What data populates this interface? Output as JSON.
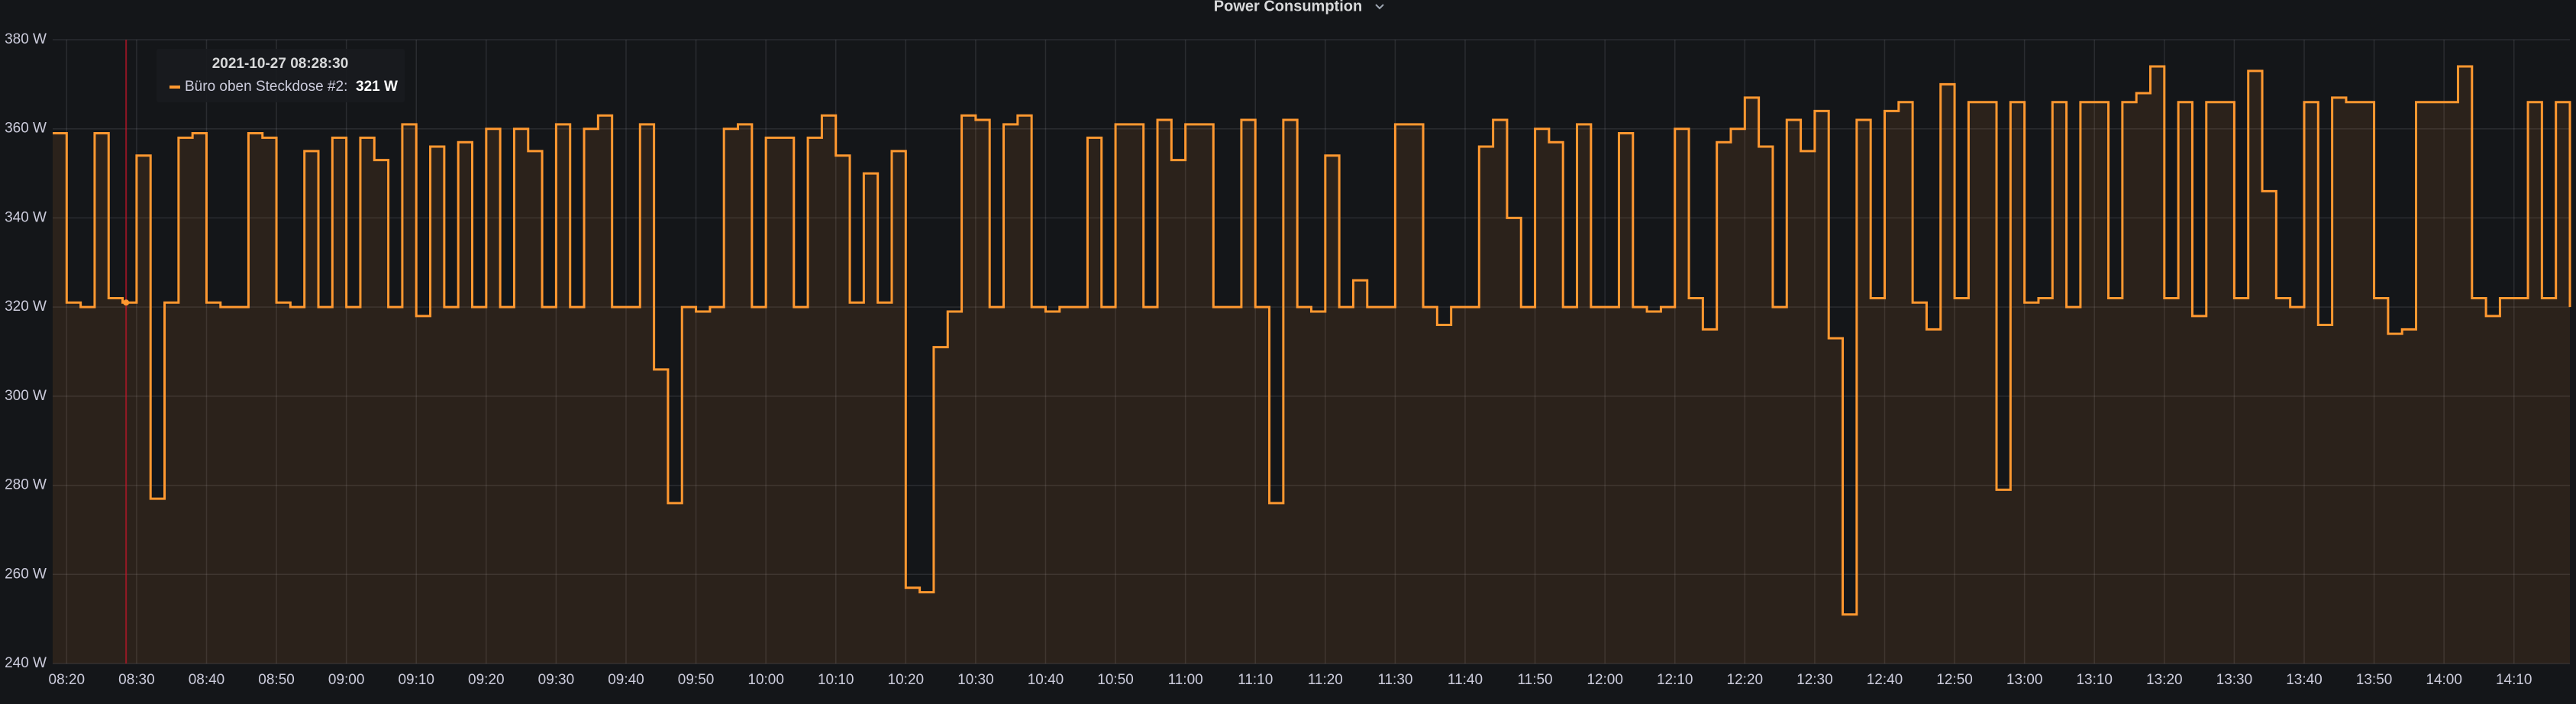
{
  "chart_data": {
    "type": "line",
    "title": "Power Consumption",
    "step": true,
    "grid": true,
    "xlim": [
      "08:18",
      "14:18"
    ],
    "xticks": [
      "08:20",
      "08:30",
      "08:40",
      "08:50",
      "09:00",
      "09:10",
      "09:20",
      "09:30",
      "09:40",
      "09:50",
      "10:00",
      "10:10",
      "10:20",
      "10:30",
      "10:40",
      "10:50",
      "11:00",
      "11:10",
      "11:20",
      "11:30",
      "11:40",
      "11:50",
      "12:00",
      "12:10",
      "12:20",
      "12:30",
      "12:40",
      "12:50",
      "13:00",
      "13:10",
      "13:20",
      "13:30",
      "13:40",
      "13:50",
      "14:00",
      "14:10"
    ],
    "ylim": [
      240,
      380
    ],
    "yticks": [
      {
        "value": 240,
        "label": "240 W"
      },
      {
        "value": 260,
        "label": "260 W"
      },
      {
        "value": 280,
        "label": "280 W"
      },
      {
        "value": 300,
        "label": "300 W"
      },
      {
        "value": 320,
        "label": "320 W"
      },
      {
        "value": 340,
        "label": "340 W"
      },
      {
        "value": 360,
        "label": "360 W"
      },
      {
        "value": 380,
        "label": "380 W"
      }
    ],
    "x": [
      "08:18",
      "08:20",
      "08:22",
      "08:24",
      "08:26",
      "08:28",
      "08:30",
      "08:32",
      "08:34",
      "08:36",
      "08:38",
      "08:40",
      "08:42",
      "08:44",
      "08:46",
      "08:48",
      "08:50",
      "08:52",
      "08:54",
      "08:56",
      "08:58",
      "09:00",
      "09:02",
      "09:04",
      "09:06",
      "09:08",
      "09:10",
      "09:12",
      "09:14",
      "09:16",
      "09:18",
      "09:20",
      "09:22",
      "09:24",
      "09:26",
      "09:28",
      "09:30",
      "09:32",
      "09:34",
      "09:36",
      "09:38",
      "09:40",
      "09:42",
      "09:44",
      "09:46",
      "09:48",
      "09:50",
      "09:52",
      "09:54",
      "09:56",
      "09:58",
      "10:00",
      "10:02",
      "10:04",
      "10:06",
      "10:08",
      "10:10",
      "10:12",
      "10:14",
      "10:16",
      "10:18",
      "10:20",
      "10:22",
      "10:24",
      "10:26",
      "10:28",
      "10:30",
      "10:32",
      "10:34",
      "10:36",
      "10:38",
      "10:40",
      "10:42",
      "10:44",
      "10:46",
      "10:48",
      "10:50",
      "10:52",
      "10:54",
      "10:56",
      "10:58",
      "11:00",
      "11:02",
      "11:04",
      "11:06",
      "11:08",
      "11:10",
      "11:12",
      "11:14",
      "11:16",
      "11:18",
      "11:20",
      "11:22",
      "11:24",
      "11:26",
      "11:28",
      "11:30",
      "11:32",
      "11:34",
      "11:36",
      "11:38",
      "11:40",
      "11:42",
      "11:44",
      "11:46",
      "11:48",
      "11:50",
      "11:52",
      "11:54",
      "11:56",
      "11:58",
      "12:00",
      "12:02",
      "12:04",
      "12:06",
      "12:08",
      "12:10",
      "12:12",
      "12:14",
      "12:16",
      "12:18",
      "12:20",
      "12:22",
      "12:24",
      "12:26",
      "12:28",
      "12:30",
      "12:32",
      "12:34",
      "12:36",
      "12:38",
      "12:40",
      "12:42",
      "12:44",
      "12:46",
      "12:48",
      "12:50",
      "12:52",
      "12:54",
      "12:56",
      "12:58",
      "13:00",
      "13:02",
      "13:04",
      "13:06",
      "13:08",
      "13:10",
      "13:12",
      "13:14",
      "13:16",
      "13:18",
      "13:20",
      "13:22",
      "13:24",
      "13:26",
      "13:28",
      "13:30",
      "13:32",
      "13:34",
      "13:36",
      "13:38",
      "13:40",
      "13:42",
      "13:44",
      "13:46",
      "13:48",
      "13:50",
      "13:52",
      "13:54",
      "13:56",
      "13:58",
      "14:00",
      "14:02",
      "14:04",
      "14:06",
      "14:08",
      "14:10",
      "14:12",
      "14:14",
      "14:16",
      "14:18"
    ],
    "series": [
      {
        "color": "#ff9830",
        "values": [
          359,
          321,
          320,
          359,
          322,
          321,
          354,
          277,
          321,
          358,
          359,
          321,
          320,
          320,
          359,
          358,
          321,
          320,
          355,
          320,
          358,
          320,
          358,
          353,
          320,
          361,
          318,
          356,
          320,
          357,
          320,
          360,
          320,
          360,
          355,
          320,
          361,
          320,
          360,
          363,
          320,
          320,
          361,
          306,
          276,
          320,
          319,
          320,
          360,
          361,
          320,
          358,
          358,
          320,
          358,
          363,
          354,
          321,
          350,
          321,
          355,
          257,
          256,
          311,
          319,
          363,
          362,
          320,
          361,
          363,
          320,
          319,
          320,
          320,
          358,
          320,
          361,
          361,
          320,
          362,
          353,
          361,
          361,
          320,
          320,
          362,
          320,
          276,
          362,
          320,
          319,
          354,
          320,
          326,
          320,
          320,
          361,
          361,
          320,
          316,
          320,
          320,
          356,
          362,
          340,
          320,
          360,
          357,
          320,
          361,
          320,
          320,
          359,
          320,
          319,
          320,
          360,
          322,
          315,
          357,
          360,
          367,
          356,
          320,
          362,
          355,
          364,
          313,
          251,
          362,
          322,
          364,
          366,
          321,
          315,
          370,
          322,
          366,
          366,
          279,
          366,
          321,
          322,
          366,
          320,
          366,
          366,
          322,
          366,
          368,
          374,
          322,
          366,
          318,
          366,
          366,
          322,
          373,
          346,
          322,
          320,
          366,
          316,
          367,
          366,
          366,
          322,
          314,
          315,
          366,
          366,
          366,
          374,
          322,
          318,
          322,
          322,
          366,
          322,
          366,
          320
        ]
      }
    ],
    "tooltip": {
      "title": "2021-10-27 08:28:30",
      "label": "Büro oben Steckdose #2:",
      "value": 321,
      "value_label": "321 W"
    }
  }
}
